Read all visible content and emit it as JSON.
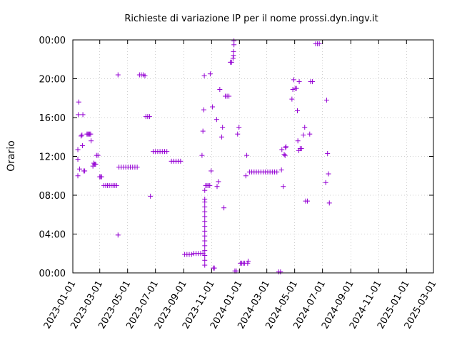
{
  "chart_data": {
    "type": "scatter",
    "title": "Richieste di variazione IP per il nome prossi.dyn.ingv.it",
    "xlabel": "",
    "ylabel": "Orario",
    "x_ticks": [
      "2023-01-01",
      "2023-03-01",
      "2023-05-01",
      "2023-07-01",
      "2023-09-01",
      "2023-11-01",
      "2024-01-01",
      "2024-03-01",
      "2024-05-01",
      "2024-07-01",
      "2024-09-01",
      "2024-11-01",
      "2025-01-01",
      "2025-03-01"
    ],
    "y_ticks": [
      "00:00",
      "04:00",
      "08:00",
      "12:00",
      "16:00",
      "20:00",
      "00:00"
    ],
    "xlim": [
      "2023-01-01",
      "2025-03-01"
    ],
    "ylim": [
      0,
      24
    ],
    "grid": true,
    "color": "#9400d3",
    "marker": "plus",
    "points": [
      [
        "2023-01-12",
        10.0
      ],
      [
        "2023-01-12",
        11.7
      ],
      [
        "2023-01-12",
        12.7
      ],
      [
        "2023-01-13",
        16.3
      ],
      [
        "2023-01-14",
        17.6
      ],
      [
        "2023-01-16",
        10.7
      ],
      [
        "2023-01-19",
        14.1
      ],
      [
        "2023-01-21",
        14.2
      ],
      [
        "2023-01-22",
        13.1
      ],
      [
        "2023-01-23",
        16.3
      ],
      [
        "2023-01-25",
        10.5
      ],
      [
        "2023-01-27",
        10.5
      ],
      [
        "2023-02-01",
        14.3
      ],
      [
        "2023-02-03",
        14.3
      ],
      [
        "2023-02-05",
        14.3
      ],
      [
        "2023-02-07",
        14.3
      ],
      [
        "2023-02-09",
        14.3
      ],
      [
        "2023-02-10",
        13.6
      ],
      [
        "2023-02-14",
        11.0
      ],
      [
        "2023-02-16",
        11.3
      ],
      [
        "2023-02-18",
        11.2
      ],
      [
        "2023-02-20",
        11.2
      ],
      [
        "2023-02-22",
        12.1
      ],
      [
        "2023-02-25",
        12.1
      ],
      [
        "2023-03-01",
        9.9
      ],
      [
        "2023-03-03",
        9.9
      ],
      [
        "2023-03-05",
        9.9
      ],
      [
        "2023-03-10",
        9.0
      ],
      [
        "2023-03-14",
        9.0
      ],
      [
        "2023-03-18",
        9.0
      ],
      [
        "2023-03-22",
        9.0
      ],
      [
        "2023-03-26",
        9.0
      ],
      [
        "2023-03-30",
        9.0
      ],
      [
        "2023-04-03",
        9.0
      ],
      [
        "2023-04-07",
        9.0
      ],
      [
        "2023-04-10",
        20.4
      ],
      [
        "2023-04-10",
        3.9
      ],
      [
        "2023-04-12",
        10.9
      ],
      [
        "2023-04-17",
        10.9
      ],
      [
        "2023-04-22",
        10.9
      ],
      [
        "2023-04-27",
        10.9
      ],
      [
        "2023-05-02",
        10.9
      ],
      [
        "2023-05-07",
        10.9
      ],
      [
        "2023-05-12",
        10.9
      ],
      [
        "2023-05-17",
        10.9
      ],
      [
        "2023-05-22",
        10.9
      ],
      [
        "2023-05-27",
        20.4
      ],
      [
        "2023-05-31",
        20.4
      ],
      [
        "2023-06-04",
        20.4
      ],
      [
        "2023-06-08",
        20.3
      ],
      [
        "2023-06-10",
        16.1
      ],
      [
        "2023-06-14",
        16.1
      ],
      [
        "2023-06-18",
        16.1
      ],
      [
        "2023-06-20",
        7.9
      ],
      [
        "2023-06-26",
        12.5
      ],
      [
        "2023-07-01",
        12.5
      ],
      [
        "2023-07-06",
        12.5
      ],
      [
        "2023-07-11",
        12.5
      ],
      [
        "2023-07-16",
        12.5
      ],
      [
        "2023-07-21",
        12.5
      ],
      [
        "2023-07-26",
        12.5
      ],
      [
        "2023-08-05",
        11.5
      ],
      [
        "2023-08-10",
        11.5
      ],
      [
        "2023-08-15",
        11.5
      ],
      [
        "2023-08-20",
        11.5
      ],
      [
        "2023-08-25",
        11.5
      ],
      [
        "2023-09-03",
        1.9
      ],
      [
        "2023-09-08",
        1.9
      ],
      [
        "2023-09-13",
        1.9
      ],
      [
        "2023-09-18",
        1.9
      ],
      [
        "2023-09-23",
        2.0
      ],
      [
        "2023-09-28",
        2.0
      ],
      [
        "2023-10-03",
        2.0
      ],
      [
        "2023-10-08",
        2.0
      ],
      [
        "2023-10-13",
        2.0
      ],
      [
        "2023-10-11",
        12.1
      ],
      [
        "2023-10-13",
        14.6
      ],
      [
        "2023-10-15",
        16.8
      ],
      [
        "2023-10-16",
        20.3
      ],
      [
        "2023-10-17",
        0.8
      ],
      [
        "2023-10-17",
        1.3
      ],
      [
        "2023-10-17",
        1.8
      ],
      [
        "2023-10-17",
        2.3
      ],
      [
        "2023-10-17",
        2.8
      ],
      [
        "2023-10-17",
        3.3
      ],
      [
        "2023-10-17",
        3.8
      ],
      [
        "2023-10-17",
        4.3
      ],
      [
        "2023-10-17",
        4.8
      ],
      [
        "2023-10-17",
        5.3
      ],
      [
        "2023-10-17",
        5.8
      ],
      [
        "2023-10-17",
        6.3
      ],
      [
        "2023-10-17",
        6.8
      ],
      [
        "2023-10-17",
        7.3
      ],
      [
        "2023-10-17",
        7.6
      ],
      [
        "2023-10-17",
        8.5
      ],
      [
        "2023-10-19",
        9.0
      ],
      [
        "2023-10-22",
        9.0
      ],
      [
        "2023-10-25",
        9.0
      ],
      [
        "2023-10-28",
        9.0
      ],
      [
        "2023-10-29",
        20.5
      ],
      [
        "2023-10-31",
        10.5
      ],
      [
        "2023-11-03",
        17.1
      ],
      [
        "2023-11-05",
        0.5
      ],
      [
        "2023-11-07",
        0.5
      ],
      [
        "2023-11-12",
        15.8
      ],
      [
        "2023-11-13",
        8.9
      ],
      [
        "2023-11-16",
        9.4
      ],
      [
        "2023-11-19",
        18.9
      ],
      [
        "2023-11-23",
        14.0
      ],
      [
        "2023-11-25",
        15.0
      ],
      [
        "2023-11-28",
        6.7
      ],
      [
        "2023-12-01",
        18.2
      ],
      [
        "2023-12-05",
        18.2
      ],
      [
        "2023-12-09",
        18.2
      ],
      [
        "2023-12-12",
        21.7
      ],
      [
        "2023-12-15",
        21.7
      ],
      [
        "2023-12-18",
        22.1
      ],
      [
        "2023-12-19",
        22.4
      ],
      [
        "2023-12-19",
        22.8
      ],
      [
        "2023-12-20",
        23.5
      ],
      [
        "2023-12-20",
        23.9
      ],
      [
        "2023-12-22",
        0.2
      ],
      [
        "2023-12-25",
        0.2
      ],
      [
        "2023-12-28",
        14.3
      ],
      [
        "2023-12-31",
        15.0
      ],
      [
        "2024-01-03",
        1.0
      ],
      [
        "2024-01-06",
        1.0
      ],
      [
        "2024-01-09",
        1.0
      ],
      [
        "2024-01-12",
        1.0
      ],
      [
        "2024-01-15",
        10.0
      ],
      [
        "2024-01-17",
        12.1
      ],
      [
        "2024-01-19",
        1.0
      ],
      [
        "2024-01-20",
        1.2
      ],
      [
        "2024-01-23",
        10.4
      ],
      [
        "2024-01-28",
        10.4
      ],
      [
        "2024-02-02",
        10.4
      ],
      [
        "2024-02-07",
        10.4
      ],
      [
        "2024-02-12",
        10.4
      ],
      [
        "2024-02-17",
        10.4
      ],
      [
        "2024-02-22",
        10.4
      ],
      [
        "2024-02-27",
        10.4
      ],
      [
        "2024-03-03",
        10.4
      ],
      [
        "2024-03-08",
        10.4
      ],
      [
        "2024-03-13",
        10.4
      ],
      [
        "2024-03-18",
        10.4
      ],
      [
        "2024-03-23",
        10.4
      ],
      [
        "2024-03-27",
        0.1
      ],
      [
        "2024-03-31",
        0.1
      ],
      [
        "2024-04-02",
        10.6
      ],
      [
        "2024-04-03",
        12.7
      ],
      [
        "2024-04-06",
        8.9
      ],
      [
        "2024-04-08",
        12.2
      ],
      [
        "2024-04-10",
        12.1
      ],
      [
        "2024-04-11",
        12.9
      ],
      [
        "2024-04-12",
        13.0
      ],
      [
        "2024-04-25",
        17.9
      ],
      [
        "2024-04-27",
        18.9
      ],
      [
        "2024-04-29",
        19.9
      ],
      [
        "2024-05-02",
        19.0
      ],
      [
        "2024-05-05",
        19.0
      ],
      [
        "2024-05-07",
        16.7
      ],
      [
        "2024-05-08",
        13.6
      ],
      [
        "2024-05-10",
        12.6
      ],
      [
        "2024-05-11",
        19.7
      ],
      [
        "2024-05-13",
        12.8
      ],
      [
        "2024-05-16",
        12.8
      ],
      [
        "2024-05-20",
        14.2
      ],
      [
        "2024-05-23",
        15.0
      ],
      [
        "2024-05-25",
        7.4
      ],
      [
        "2024-05-29",
        7.4
      ],
      [
        "2024-06-03",
        14.3
      ],
      [
        "2024-06-05",
        19.7
      ],
      [
        "2024-06-09",
        19.7
      ],
      [
        "2024-06-16",
        23.6
      ],
      [
        "2024-06-20",
        23.6
      ],
      [
        "2024-06-24",
        23.6
      ],
      [
        "2024-07-08",
        9.3
      ],
      [
        "2024-07-10",
        17.8
      ],
      [
        "2024-07-12",
        12.3
      ],
      [
        "2024-07-14",
        10.2
      ],
      [
        "2024-07-16",
        7.2
      ]
    ]
  }
}
